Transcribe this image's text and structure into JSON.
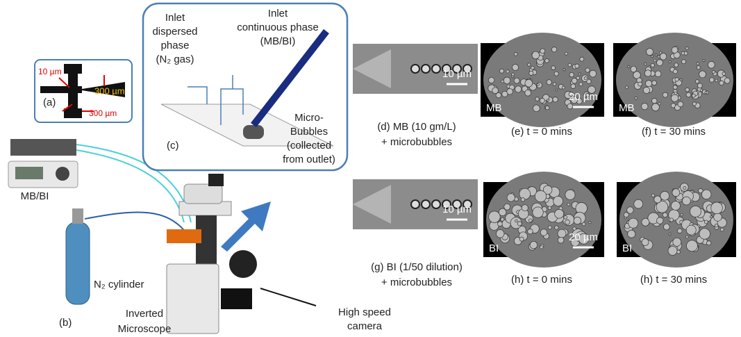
{
  "panel_a": {
    "label": "(a)",
    "width_10": "10 µm",
    "width_300_top": "300 µm",
    "width_300_bottom": "300 µm"
  },
  "panel_b": {
    "label": "(b)",
    "pump": "MB/BI",
    "cylinder": "N₂ cylinder",
    "microscope": [
      "Inverted",
      "Microscope"
    ],
    "camera": [
      "High speed",
      "camera"
    ]
  },
  "panel_c": {
    "label": "(c)",
    "inlet_dispersed": [
      "Inlet",
      "dispersed",
      "phase",
      "(N₂ gas)"
    ],
    "inlet_continuous": [
      "Inlet",
      "continuous phase",
      "(MB/BI)"
    ],
    "bubbles": [
      "Micro-",
      "Bubbles",
      "(collected",
      "from outlet)"
    ]
  },
  "images": [
    {
      "scale": "10 µm",
      "caption": [
        "(d)  MB (10 gm/L)",
        "+ microbubbles"
      ]
    },
    {
      "tag": "MB",
      "scale": "20 µm",
      "caption": [
        "(e)  t = 0 mins"
      ]
    },
    {
      "tag": "MB",
      "caption": [
        "(f)  t = 30 mins"
      ]
    },
    {
      "scale": "10 µm",
      "caption": [
        "(g) BI (1/50 dilution)",
        "+ microbubbles"
      ]
    },
    {
      "tag": "BI",
      "scale": "20 µm",
      "caption": [
        "(h)  t = 0 mins"
      ]
    },
    {
      "tag": "BI",
      "caption": [
        "(h) t = 30 mins"
      ]
    }
  ]
}
